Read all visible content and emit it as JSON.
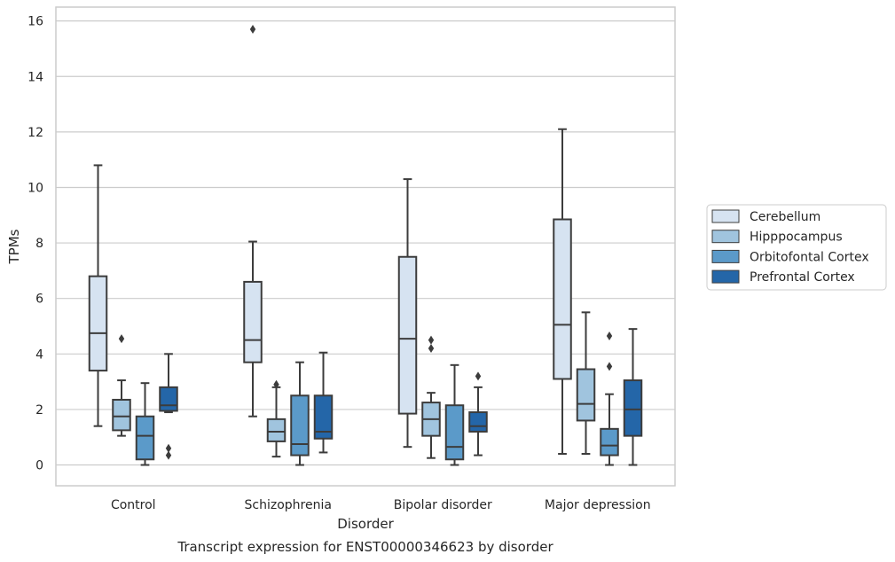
{
  "chart_data": {
    "type": "box",
    "title": "Transcript expression for ENST00000346623 by disorder",
    "xlabel": "Disorder",
    "ylabel": "TPMs",
    "ylim": [
      -0.75,
      16.5
    ],
    "yticks": [
      0,
      2,
      4,
      6,
      8,
      10,
      12,
      14,
      16
    ],
    "grid": true,
    "legend_position": "right",
    "categories": [
      "Control",
      "Schizophrenia",
      "Bipolar disorder",
      "Major depression"
    ],
    "series": [
      {
        "name": "Cerebellum",
        "color": "#d6e3f1",
        "boxes": [
          {
            "whislo": 1.4,
            "q1": 3.4,
            "med": 4.75,
            "q3": 6.8,
            "whishi": 10.8,
            "fliers": []
          },
          {
            "whislo": 1.75,
            "q1": 3.7,
            "med": 4.5,
            "q3": 6.6,
            "whishi": 8.05,
            "fliers": [
              15.7
            ]
          },
          {
            "whislo": 0.65,
            "q1": 1.85,
            "med": 4.55,
            "q3": 7.5,
            "whishi": 10.3,
            "fliers": []
          },
          {
            "whislo": 0.4,
            "q1": 3.1,
            "med": 5.05,
            "q3": 8.85,
            "whishi": 12.1,
            "fliers": []
          }
        ]
      },
      {
        "name": "Hipppocampus",
        "color": "#a0c4de",
        "boxes": [
          {
            "whislo": 1.05,
            "q1": 1.25,
            "med": 1.75,
            "q3": 2.35,
            "whishi": 3.05,
            "fliers": [
              4.55
            ]
          },
          {
            "whislo": 0.3,
            "q1": 0.85,
            "med": 1.2,
            "q3": 1.65,
            "whishi": 2.8,
            "fliers": [
              2.9
            ]
          },
          {
            "whislo": 0.25,
            "q1": 1.05,
            "med": 1.65,
            "q3": 2.25,
            "whishi": 2.6,
            "fliers": [
              4.5,
              4.2
            ]
          },
          {
            "whislo": 0.4,
            "q1": 1.6,
            "med": 2.2,
            "q3": 3.45,
            "whishi": 5.5,
            "fliers": []
          }
        ]
      },
      {
        "name": "Orbitofontal Cortex",
        "color": "#5b9ac9",
        "boxes": [
          {
            "whislo": 0.0,
            "q1": 0.2,
            "med": 1.05,
            "q3": 1.75,
            "whishi": 2.95,
            "fliers": []
          },
          {
            "whislo": 0.0,
            "q1": 0.35,
            "med": 0.75,
            "q3": 2.5,
            "whishi": 3.7,
            "fliers": []
          },
          {
            "whislo": 0.0,
            "q1": 0.2,
            "med": 0.65,
            "q3": 2.15,
            "whishi": 3.6,
            "fliers": []
          },
          {
            "whislo": 0.0,
            "q1": 0.35,
            "med": 0.7,
            "q3": 1.3,
            "whishi": 2.55,
            "fliers": [
              4.65,
              3.55
            ]
          }
        ]
      },
      {
        "name": "Prefrontal Cortex",
        "color": "#2466a8",
        "boxes": [
          {
            "whislo": 1.9,
            "q1": 1.95,
            "med": 2.15,
            "q3": 2.8,
            "whishi": 4.0,
            "fliers": [
              0.6,
              0.35
            ]
          },
          {
            "whislo": 0.45,
            "q1": 0.95,
            "med": 1.2,
            "q3": 2.5,
            "whishi": 4.05,
            "fliers": []
          },
          {
            "whislo": 0.35,
            "q1": 1.2,
            "med": 1.4,
            "q3": 1.9,
            "whishi": 2.8,
            "fliers": [
              3.2
            ]
          },
          {
            "whislo": 0.0,
            "q1": 1.05,
            "med": 2.0,
            "q3": 3.05,
            "whishi": 4.9,
            "fliers": []
          }
        ]
      }
    ]
  }
}
